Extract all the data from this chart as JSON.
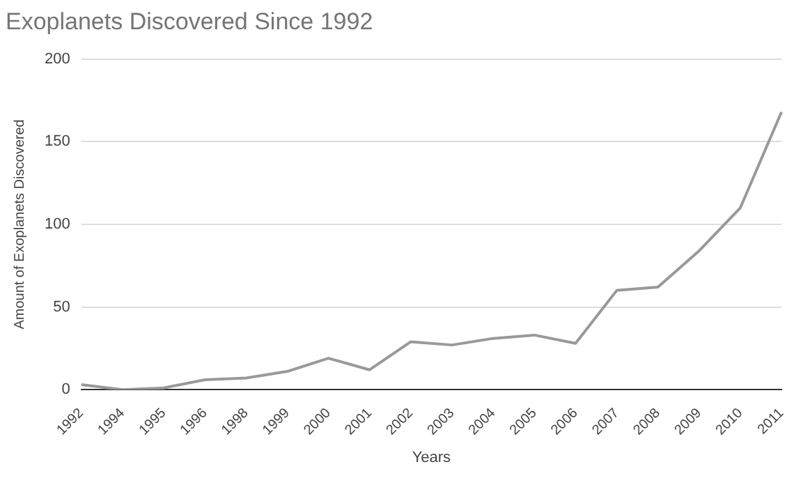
{
  "chart_data": {
    "type": "line",
    "title": "Exoplanets Discovered Since 1992",
    "xlabel": "Years",
    "ylabel": "Amount of Exoplanets Discovered",
    "categories": [
      "1992",
      "1994",
      "1995",
      "1996",
      "1998",
      "1999",
      "2000",
      "2001",
      "2002",
      "2003",
      "2004",
      "2005",
      "2006",
      "2007",
      "2008",
      "2009",
      "2010",
      "2011"
    ],
    "series": [
      {
        "color": "#999999",
        "values": [
          3,
          0,
          1,
          6,
          7,
          11,
          19,
          12,
          29,
          27,
          31,
          33,
          28,
          60,
          62,
          84,
          110,
          168
        ]
      }
    ],
    "ylim": [
      0,
      200
    ],
    "yticks": [
      0,
      50,
      100,
      150,
      200
    ],
    "grid": "y",
    "legend": false,
    "marker": "none",
    "line_style": "solid"
  }
}
